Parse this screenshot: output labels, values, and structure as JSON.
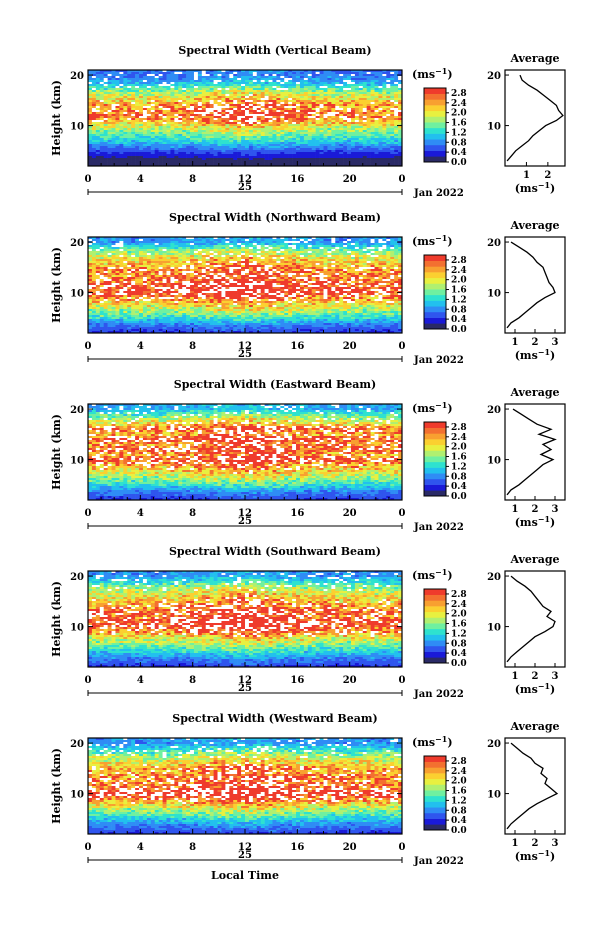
{
  "figure": {
    "xlabel": "Local Time",
    "date_day": "25",
    "date_month": "Jan 2022",
    "ylabel": "Height (km)",
    "cb_unit": "(ms",
    "cb_unit_sup": "−1",
    "cb_unit_close": ")",
    "avg_title": "Average",
    "avg_unit": "(ms",
    "avg_unit_sup": "−1",
    "avg_unit_close": ")"
  },
  "colorbar": {
    "ticks": [
      "0.0",
      "0.4",
      "0.8",
      "1.2",
      "1.6",
      "2.0",
      "2.4",
      "2.8"
    ],
    "range": [
      0.0,
      3.0
    ],
    "colors": [
      "#2a2a66",
      "#1a1ad8",
      "#2f55ee",
      "#2f8cf5",
      "#22c0ee",
      "#2ee2cf",
      "#6ff0a0",
      "#b0f070",
      "#e8f040",
      "#fbd030",
      "#f8a030",
      "#f37030",
      "#ef3b2c"
    ]
  },
  "chart_data": [
    {
      "type": "heatmap",
      "title": "Spectral Width (Vertical Beam)",
      "x_ticks": [
        "0",
        "4",
        "8",
        "12",
        "16",
        "20",
        "0"
      ],
      "x_range": [
        0,
        24
      ],
      "y_ticks": [
        "10",
        "20"
      ],
      "y_range": [
        2,
        21
      ],
      "variable": "spectral width (m/s)",
      "profile_centre_km": 12.5,
      "profile_peak_value": 2.6,
      "average": {
        "xticks": [
          "1",
          "2"
        ],
        "xlim": [
          0,
          2.8
        ],
        "height_km": [
          3,
          4,
          5,
          6,
          7,
          8,
          9,
          10,
          11,
          12,
          13,
          14,
          15,
          16,
          17,
          18,
          19,
          20
        ],
        "value": [
          0.1,
          0.3,
          0.5,
          0.8,
          1.1,
          1.3,
          1.6,
          1.9,
          2.4,
          2.7,
          2.5,
          2.4,
          2.1,
          1.8,
          1.5,
          1.1,
          0.8,
          0.7
        ]
      }
    },
    {
      "type": "heatmap",
      "title": "Spectral Width (Northward Beam)",
      "x_ticks": [
        "0",
        "4",
        "8",
        "12",
        "16",
        "20",
        "0"
      ],
      "x_range": [
        0,
        24
      ],
      "y_ticks": [
        "10",
        "20"
      ],
      "y_range": [
        2,
        21
      ],
      "variable": "spectral width (m/s)",
      "profile_centre_km": 11.5,
      "profile_peak_value": 3.0,
      "average": {
        "xticks": [
          "1",
          "2",
          "3"
        ],
        "xlim": [
          0.5,
          3.5
        ],
        "height_km": [
          3,
          4,
          5,
          6,
          7,
          8,
          9,
          10,
          11,
          12,
          13,
          14,
          15,
          16,
          17,
          18,
          19,
          20
        ],
        "value": [
          0.6,
          0.8,
          1.2,
          1.5,
          1.8,
          2.1,
          2.5,
          3.0,
          2.9,
          2.7,
          2.6,
          2.5,
          2.4,
          2.1,
          1.9,
          1.6,
          1.2,
          0.8
        ]
      }
    },
    {
      "type": "heatmap",
      "title": "Spectral Width (Eastward Beam)",
      "x_ticks": [
        "0",
        "4",
        "8",
        "12",
        "16",
        "20",
        "0"
      ],
      "x_range": [
        0,
        24
      ],
      "y_ticks": [
        "10",
        "20"
      ],
      "y_range": [
        2,
        21
      ],
      "variable": "spectral width (m/s)",
      "profile_centre_km": 12.0,
      "profile_peak_value": 3.0,
      "average": {
        "xticks": [
          "1",
          "2",
          "3"
        ],
        "xlim": [
          0.5,
          3.5
        ],
        "height_km": [
          3,
          4,
          5,
          6,
          7,
          8,
          9,
          10,
          11,
          12,
          13,
          14,
          15,
          16,
          17,
          18,
          19,
          20
        ],
        "value": [
          0.6,
          0.8,
          1.2,
          1.5,
          1.8,
          2.1,
          2.4,
          2.9,
          2.3,
          2.8,
          2.4,
          3.0,
          2.2,
          2.8,
          2.1,
          1.7,
          1.3,
          0.9
        ]
      }
    },
    {
      "type": "heatmap",
      "title": "Spectral Width (Southward Beam)",
      "x_ticks": [
        "0",
        "4",
        "8",
        "12",
        "16",
        "20",
        "0"
      ],
      "x_range": [
        0,
        24
      ],
      "y_ticks": [
        "10",
        "20"
      ],
      "y_range": [
        2,
        21
      ],
      "variable": "spectral width (m/s)",
      "profile_centre_km": 11.5,
      "profile_peak_value": 3.0,
      "average": {
        "xticks": [
          "1",
          "2",
          "3"
        ],
        "xlim": [
          0.5,
          3.5
        ],
        "height_km": [
          3,
          4,
          5,
          6,
          7,
          8,
          9,
          10,
          11,
          12,
          13,
          14,
          15,
          16,
          17,
          18,
          19,
          20
        ],
        "value": [
          0.6,
          0.8,
          1.1,
          1.4,
          1.7,
          2.0,
          2.5,
          2.9,
          3.0,
          2.6,
          2.8,
          2.4,
          2.2,
          2.0,
          1.8,
          1.5,
          1.1,
          0.8
        ]
      }
    },
    {
      "type": "heatmap",
      "title": "Spectral Width (Westward Beam)",
      "x_ticks": [
        "0",
        "4",
        "8",
        "12",
        "16",
        "20",
        "0"
      ],
      "x_range": [
        0,
        24
      ],
      "y_ticks": [
        "10",
        "20"
      ],
      "y_range": [
        2,
        21
      ],
      "variable": "spectral width (m/s)",
      "profile_centre_km": 10.5,
      "profile_peak_value": 3.0,
      "average": {
        "xticks": [
          "1",
          "2",
          "3"
        ],
        "xlim": [
          0.5,
          3.5
        ],
        "height_km": [
          3,
          4,
          5,
          6,
          7,
          8,
          9,
          10,
          11,
          12,
          13,
          14,
          15,
          16,
          17,
          18,
          19,
          20
        ],
        "value": [
          0.6,
          0.8,
          1.1,
          1.4,
          1.7,
          2.1,
          2.6,
          3.1,
          2.8,
          2.5,
          2.6,
          2.3,
          2.4,
          2.0,
          1.8,
          1.4,
          1.1,
          0.8
        ]
      }
    }
  ]
}
